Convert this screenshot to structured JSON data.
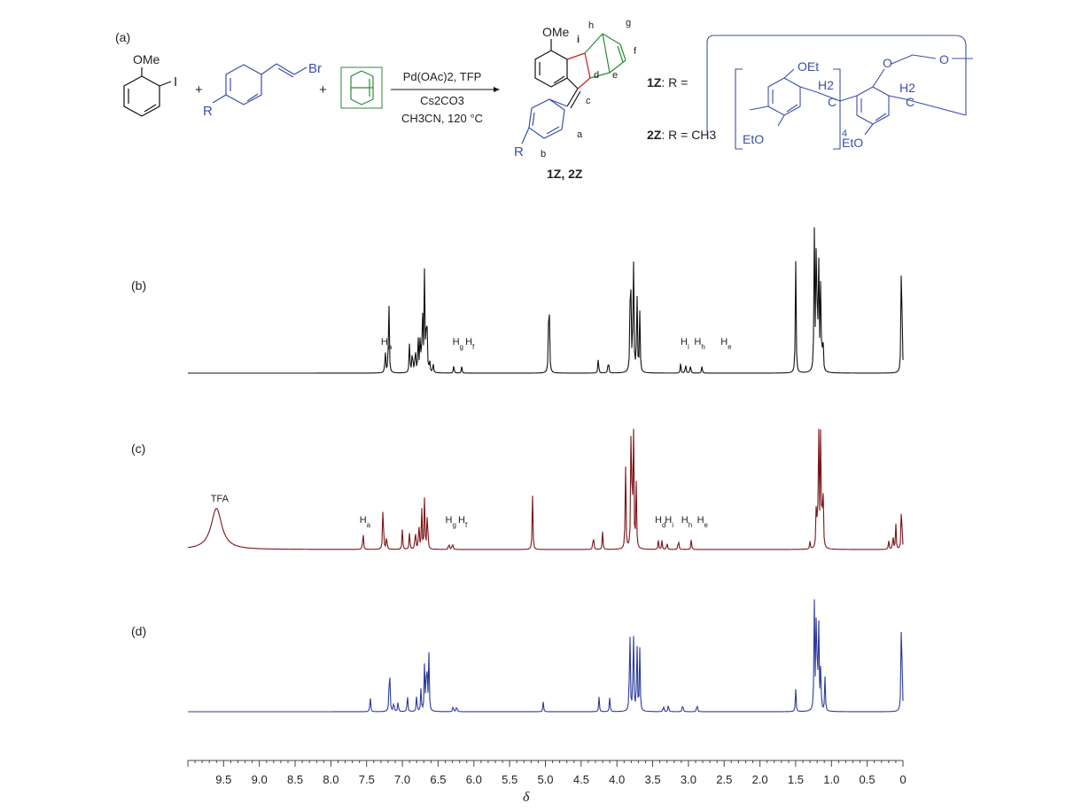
{
  "scheme": {
    "panel_label": "(a)",
    "reactant_substituent": "OMe",
    "reactant_halide": "I",
    "plus_signs": [
      "+",
      "+"
    ],
    "vinyl_halide": "Br",
    "r_group": "R",
    "conditions": {
      "catalyst_html": "Pd(OAc)<tspan baseline-shift=\"sub\" font-size=\"9\">2</tspan>, TFP",
      "catalyst_text": "Pd(OAc)2, TFP",
      "base": "Cs2CO3",
      "solvent_temp": "CH3CN, 120 °C"
    },
    "product_substituent": "OMe",
    "product_labels": {
      "h": "h",
      "g": "g",
      "i": "i",
      "f": "f",
      "d": "d",
      "e": "e",
      "c": "c",
      "a": "a",
      "b": "b"
    },
    "product_name": "1Z, 2Z",
    "r_definitions": [
      {
        "compound": "1Z",
        "text": ": R ="
      },
      {
        "compound": "2Z",
        "text": ": R = CH3"
      }
    ],
    "pillar_labels": {
      "oet_top": "OEt",
      "eto_bottom": "EtO",
      "ch2_a": "H2",
      "ch2_a_c": "C",
      "ch2_b": "H2",
      "ch2_b_c": "C",
      "eto_right": "EtO",
      "repeat": "4",
      "o_link": "O",
      "o_end": "O"
    }
  },
  "chart_data": [
    {
      "type": "line",
      "panel": "(b)",
      "color": "#111111",
      "peaks": [
        {
          "x": 7.24,
          "h": 0.19
        },
        {
          "x": 7.19,
          "h": 0.62
        },
        {
          "x": 6.9,
          "h": 0.24
        },
        {
          "x": 6.86,
          "h": 0.2
        },
        {
          "x": 6.82,
          "h": 0.22
        },
        {
          "x": 6.78,
          "h": 0.26
        },
        {
          "x": 6.75,
          "h": 0.3
        },
        {
          "x": 6.72,
          "h": 0.55
        },
        {
          "x": 6.69,
          "h": 0.78
        },
        {
          "x": 6.66,
          "h": 0.62
        },
        {
          "x": 6.62,
          "h": 0.09
        },
        {
          "x": 6.57,
          "h": 0.07
        },
        {
          "x": 6.28,
          "h": 0.06
        },
        {
          "x": 6.17,
          "h": 0.05
        },
        {
          "x": 4.95,
          "h": 0.85
        },
        {
          "x": 4.26,
          "h": 0.12
        },
        {
          "x": 4.12,
          "h": 0.12
        },
        {
          "x": 3.81,
          "h": 1.15
        },
        {
          "x": 3.77,
          "h": 1.0
        },
        {
          "x": 3.72,
          "h": 0.65
        },
        {
          "x": 3.68,
          "h": 0.45
        },
        {
          "x": 3.11,
          "h": 0.07
        },
        {
          "x": 3.04,
          "h": 0.08
        },
        {
          "x": 2.97,
          "h": 0.07
        },
        {
          "x": 2.81,
          "h": 0.06
        },
        {
          "x": 1.5,
          "h": 0.85
        },
        {
          "x": 1.24,
          "h": 1.05
        },
        {
          "x": 1.21,
          "h": 1.3
        },
        {
          "x": 1.18,
          "h": 0.95
        },
        {
          "x": 1.15,
          "h": 0.72
        },
        {
          "x": 1.12,
          "h": 0.32
        },
        {
          "x": 0.02,
          "h": 1.2
        }
      ],
      "annotations": [
        {
          "text": "Ha",
          "sub": "a",
          "x": 7.3
        },
        {
          "text": "Hg",
          "sub": "g",
          "x": 6.3
        },
        {
          "text": "Hf",
          "sub": "f",
          "x": 6.12
        },
        {
          "text": "Hi",
          "sub": "i",
          "x": 3.11
        },
        {
          "text": "Hh",
          "sub": "h",
          "x": 2.92
        },
        {
          "text": "He",
          "sub": "e",
          "x": 2.55
        }
      ]
    },
    {
      "type": "line",
      "panel": "(c)",
      "color": "#7a1416",
      "peaks": [
        {
          "x": 9.6,
          "h": 0.32,
          "w": 0.09
        },
        {
          "x": 7.55,
          "h": 0.15
        },
        {
          "x": 7.27,
          "h": 0.41
        },
        {
          "x": 7.22,
          "h": 0.12
        },
        {
          "x": 7.0,
          "h": 0.16
        },
        {
          "x": 6.9,
          "h": 0.14
        },
        {
          "x": 6.82,
          "h": 0.18
        },
        {
          "x": 6.77,
          "h": 0.24
        },
        {
          "x": 6.73,
          "h": 0.32
        },
        {
          "x": 6.69,
          "h": 0.41
        },
        {
          "x": 6.65,
          "h": 0.36
        },
        {
          "x": 6.35,
          "h": 0.06
        },
        {
          "x": 6.3,
          "h": 0.06
        },
        {
          "x": 5.18,
          "h": 0.42
        },
        {
          "x": 4.33,
          "h": 0.14
        },
        {
          "x": 4.2,
          "h": 0.14
        },
        {
          "x": 3.88,
          "h": 0.67
        },
        {
          "x": 3.8,
          "h": 1.26
        },
        {
          "x": 3.77,
          "h": 1.1
        },
        {
          "x": 3.73,
          "h": 0.5
        },
        {
          "x": 3.42,
          "h": 0.07
        },
        {
          "x": 3.37,
          "h": 0.07
        },
        {
          "x": 3.3,
          "h": 0.06
        },
        {
          "x": 3.14,
          "h": 0.09
        },
        {
          "x": 2.96,
          "h": 0.08
        },
        {
          "x": 1.3,
          "h": 0.06
        },
        {
          "x": 1.21,
          "h": 0.45
        },
        {
          "x": 1.18,
          "h": 1.06
        },
        {
          "x": 1.15,
          "h": 1.0
        },
        {
          "x": 1.12,
          "h": 0.65
        },
        {
          "x": 0.2,
          "h": 0.07
        },
        {
          "x": 0.14,
          "h": 0.12
        },
        {
          "x": 0.1,
          "h": 0.2
        },
        {
          "x": 0.02,
          "h": 0.45
        }
      ],
      "annotations": [
        {
          "text": "TFA",
          "sub": "",
          "x": 9.68
        },
        {
          "text": "Ha",
          "sub": "a",
          "x": 7.6
        },
        {
          "text": "Hg",
          "sub": "g",
          "x": 6.4
        },
        {
          "text": "Hf",
          "sub": "f",
          "x": 6.22
        },
        {
          "text": "Hd",
          "sub": "d",
          "x": 3.47
        },
        {
          "text": "Hi",
          "sub": "i",
          "x": 3.33
        },
        {
          "text": "Hh",
          "sub": "h",
          "x": 3.1
        },
        {
          "text": "He",
          "sub": "e",
          "x": 2.88
        }
      ]
    },
    {
      "type": "line",
      "panel": "(d)",
      "color": "#2b3a9a",
      "peaks": [
        {
          "x": 7.45,
          "h": 0.14
        },
        {
          "x": 7.18,
          "h": 0.53
        },
        {
          "x": 7.12,
          "h": 0.1
        },
        {
          "x": 7.06,
          "h": 0.1
        },
        {
          "x": 6.93,
          "h": 0.16
        },
        {
          "x": 6.8,
          "h": 0.16
        },
        {
          "x": 6.74,
          "h": 0.2
        },
        {
          "x": 6.69,
          "h": 0.42
        },
        {
          "x": 6.66,
          "h": 0.6
        },
        {
          "x": 6.63,
          "h": 0.5
        },
        {
          "x": 6.29,
          "h": 0.06
        },
        {
          "x": 6.24,
          "h": 0.06
        },
        {
          "x": 5.03,
          "h": 0.09
        },
        {
          "x": 4.25,
          "h": 0.13
        },
        {
          "x": 4.1,
          "h": 0.13
        },
        {
          "x": 3.82,
          "h": 0.85
        },
        {
          "x": 3.77,
          "h": 0.8
        },
        {
          "x": 3.72,
          "h": 0.65
        },
        {
          "x": 3.68,
          "h": 0.55
        },
        {
          "x": 3.35,
          "h": 0.06
        },
        {
          "x": 3.28,
          "h": 0.07
        },
        {
          "x": 3.08,
          "h": 0.08
        },
        {
          "x": 2.88,
          "h": 0.08
        },
        {
          "x": 1.5,
          "h": 0.2
        },
        {
          "x": 1.24,
          "h": 0.95
        },
        {
          "x": 1.21,
          "h": 1.15
        },
        {
          "x": 1.18,
          "h": 0.9
        },
        {
          "x": 1.15,
          "h": 0.4
        },
        {
          "x": 1.09,
          "h": 0.3
        },
        {
          "x": 0.02,
          "h": 1.15
        }
      ],
      "annotations": []
    }
  ],
  "axis": {
    "xlabel": "δ",
    "xlim": [
      10.0,
      0.0
    ],
    "major_ticks": [
      9.5,
      9.0,
      8.5,
      8.0,
      7.5,
      7.0,
      6.5,
      6.0,
      5.5,
      5.0,
      4.5,
      4.0,
      3.5,
      3.0,
      2.5,
      2.0,
      1.5,
      1.0,
      0.5,
      0
    ],
    "tick_labels": [
      "9.5",
      "9.0",
      "8.5",
      "8.0",
      "7.5",
      "7.0",
      "6.5",
      "6.0",
      "5.5",
      "5.0",
      "4.5",
      "4.0",
      "3.5",
      "3.0",
      "2.5",
      "2.0",
      "1.5",
      "1.0",
      "0.5",
      "0"
    ]
  },
  "colors": {
    "blue": "#3b4fa8",
    "red": "#d11a1a",
    "green": "#2a8a3a",
    "black": "#111111"
  }
}
